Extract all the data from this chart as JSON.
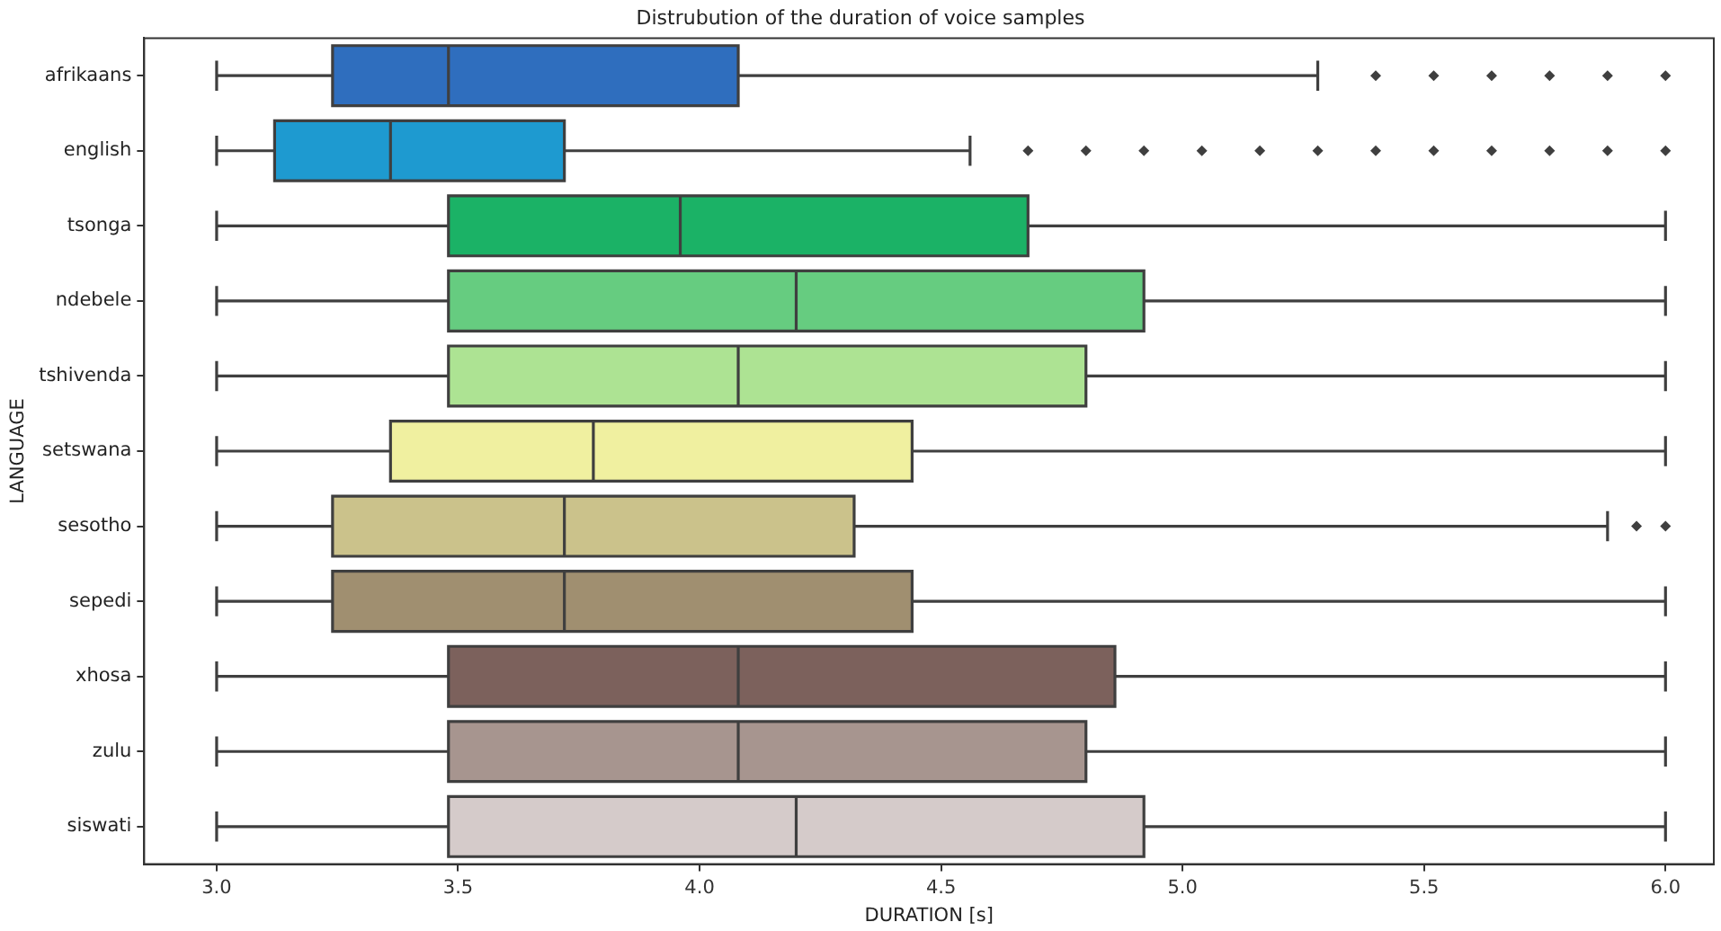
{
  "chart_data": {
    "type": "box",
    "title": "Distrubution of the duration of voice samples",
    "xlabel": "DURATION [s]",
    "ylabel": "LANGUAGE",
    "orientation": "horizontal",
    "categories": [
      "afrikaans",
      "english",
      "tsonga",
      "ndebele",
      "tshivenda",
      "setswana",
      "sesotho",
      "sepedi",
      "xhosa",
      "zulu",
      "siswati"
    ],
    "colors": [
      "#2f6ebe",
      "#1e9ad0",
      "#1bb266",
      "#66cc80",
      "#ade393",
      "#f0f0a0",
      "#cbc28b",
      "#a08f70",
      "#7c615c",
      "#a7958f",
      "#d5cbca"
    ],
    "boxes": [
      {
        "low": 3.0,
        "q1": 3.24,
        "median": 3.48,
        "q3": 4.08,
        "high": 5.28,
        "outliers": [
          5.4,
          5.52,
          5.64,
          5.76,
          5.88,
          6.0
        ]
      },
      {
        "low": 3.0,
        "q1": 3.12,
        "median": 3.36,
        "q3": 3.72,
        "high": 4.56,
        "outliers": [
          4.68,
          4.8,
          4.92,
          5.04,
          5.16,
          5.28,
          5.4,
          5.52,
          5.64,
          5.76,
          5.88,
          6.0
        ]
      },
      {
        "low": 3.0,
        "q1": 3.48,
        "median": 3.96,
        "q3": 4.68,
        "high": 6.0
      },
      {
        "low": 3.0,
        "q1": 3.48,
        "median": 4.2,
        "q3": 4.92,
        "high": 6.0
      },
      {
        "low": 3.0,
        "q1": 3.48,
        "median": 4.08,
        "q3": 4.8,
        "high": 6.0
      },
      {
        "low": 3.0,
        "q1": 3.36,
        "median": 3.78,
        "q3": 4.44,
        "high": 6.0
      },
      {
        "low": 3.0,
        "q1": 3.24,
        "median": 3.72,
        "q3": 4.32,
        "high": 5.88,
        "outliers": [
          5.94,
          6.0
        ]
      },
      {
        "low": 3.0,
        "q1": 3.24,
        "median": 3.72,
        "q3": 4.44,
        "high": 6.0
      },
      {
        "low": 3.0,
        "q1": 3.48,
        "median": 4.08,
        "q3": 4.86,
        "high": 6.0
      },
      {
        "low": 3.0,
        "q1": 3.48,
        "median": 4.08,
        "q3": 4.8,
        "high": 6.0
      },
      {
        "low": 3.0,
        "q1": 3.48,
        "median": 4.2,
        "q3": 4.92,
        "high": 6.0
      }
    ],
    "xlim": [
      2.85,
      6.1
    ],
    "xticks": [
      {
        "value": 3,
        "label": "3.0"
      },
      {
        "value": 3.5,
        "label": "3.5"
      },
      {
        "value": 4,
        "label": "4.0"
      },
      {
        "value": 4.5,
        "label": "4.5"
      },
      {
        "value": 5,
        "label": "5.0"
      },
      {
        "value": 5.5,
        "label": "5.5"
      },
      {
        "value": 6,
        "label": "6.0"
      }
    ],
    "grid": false,
    "legend": false,
    "marker": "diamond"
  }
}
